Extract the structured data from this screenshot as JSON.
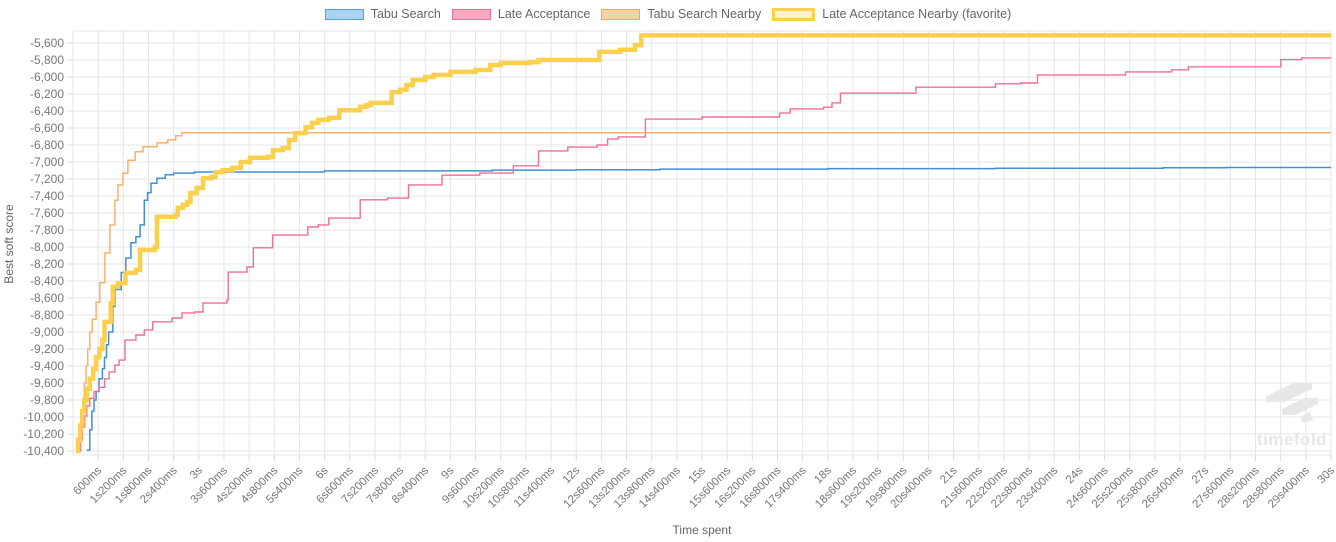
{
  "legend": {
    "items": [
      {
        "label": "Tabu Search",
        "fill": "#a9d3f2",
        "stroke": "#55a1dc",
        "line": "#4090d4",
        "line_width": 1.5
      },
      {
        "label": "Late Acceptance",
        "fill": "#f8a9bf",
        "stroke": "#ee7095",
        "line": "#ee7095",
        "line_width": 1.4
      },
      {
        "label": "Tabu Search Nearby",
        "fill": "#fbd3a2",
        "stroke": "#f7a557",
        "line": "#f9b169",
        "line_width": 1.5
      },
      {
        "label": "Late Acceptance Nearby (favorite)",
        "fill": "#fdf2cd",
        "stroke": "#fbd04f",
        "line": "#fbd04f",
        "line_width": 4.5
      }
    ]
  },
  "axes": {
    "y_title": "Best soft score",
    "x_title": "Time spent",
    "y_tick_labels": [
      "-5,600",
      "-5,800",
      "-6,000",
      "-6,200",
      "-6,400",
      "-6,600",
      "-6,800",
      "-7,000",
      "-7,200",
      "-7,400",
      "-7,600",
      "-7,800",
      "-8,000",
      "-8,200",
      "-8,400",
      "-8,600",
      "-8,800",
      "-9,000",
      "-9,200",
      "-9,400",
      "-9,600",
      "-9,800",
      "-10,000",
      "-10,200",
      "-10,400"
    ],
    "x_ticks": [
      [
        0.6,
        "600ms"
      ],
      [
        1.2,
        "1s200ms"
      ],
      [
        1.8,
        "1s800ms"
      ],
      [
        2.4,
        "2s400ms"
      ],
      [
        3,
        "3s"
      ],
      [
        3.6,
        "3s600ms"
      ],
      [
        4.2,
        "4s200ms"
      ],
      [
        4.8,
        "4s800ms"
      ],
      [
        5.4,
        "5s400ms"
      ],
      [
        6,
        "6s"
      ],
      [
        6.6,
        "6s600ms"
      ],
      [
        7.2,
        "7s200ms"
      ],
      [
        7.8,
        "7s800ms"
      ],
      [
        8.4,
        "8s400ms"
      ],
      [
        9,
        "9s"
      ],
      [
        9.6,
        "9s600ms"
      ],
      [
        10.2,
        "10s200ms"
      ],
      [
        10.8,
        "10s800ms"
      ],
      [
        11.4,
        "11s400ms"
      ],
      [
        12,
        "12s"
      ],
      [
        12.6,
        "12s600ms"
      ],
      [
        13.2,
        "13s200ms"
      ],
      [
        13.8,
        "13s800ms"
      ],
      [
        14.4,
        "14s400ms"
      ],
      [
        15,
        "15s"
      ],
      [
        15.6,
        "15s600ms"
      ],
      [
        16.2,
        "16s200ms"
      ],
      [
        16.8,
        "16s800ms"
      ],
      [
        17.4,
        "17s400ms"
      ],
      [
        18,
        "18s"
      ],
      [
        18.6,
        "18s600ms"
      ],
      [
        19.2,
        "19s200ms"
      ],
      [
        19.8,
        "19s800ms"
      ],
      [
        20.4,
        "20s400ms"
      ],
      [
        21,
        "21s"
      ],
      [
        21.6,
        "21s600ms"
      ],
      [
        22.2,
        "22s200ms"
      ],
      [
        22.8,
        "22s800ms"
      ],
      [
        23.4,
        "23s400ms"
      ],
      [
        24,
        "24s"
      ],
      [
        24.6,
        "24s600ms"
      ],
      [
        25.2,
        "25s200ms"
      ],
      [
        25.8,
        "25s800ms"
      ],
      [
        26.4,
        "26s400ms"
      ],
      [
        27,
        "27s"
      ],
      [
        27.6,
        "27s600ms"
      ],
      [
        28.2,
        "28s200ms"
      ],
      [
        28.8,
        "28s800ms"
      ],
      [
        29.4,
        "29s400ms"
      ],
      [
        30,
        "30s"
      ]
    ]
  },
  "chart_data": {
    "type": "line",
    "step": true,
    "title": "",
    "xlabel": "Time spent",
    "ylabel": "Best soft score",
    "x_unit": "seconds",
    "xlim": [
      0,
      30
    ],
    "ylim": [
      -10450,
      -5460
    ],
    "grid": true,
    "legend_position": "top",
    "series": [
      {
        "name": "Tabu Search",
        "points": [
          [
            0.33,
            -10390
          ],
          [
            0.4,
            -10150
          ],
          [
            0.45,
            -9930
          ],
          [
            0.5,
            -9800
          ],
          [
            0.55,
            -9700
          ],
          [
            0.62,
            -9550
          ],
          [
            0.7,
            -9430
          ],
          [
            0.75,
            -9300
          ],
          [
            0.8,
            -9150
          ],
          [
            0.85,
            -9000
          ],
          [
            0.95,
            -8700
          ],
          [
            1.0,
            -8500
          ],
          [
            1.15,
            -8300
          ],
          [
            1.26,
            -8130
          ],
          [
            1.38,
            -7950
          ],
          [
            1.5,
            -7880
          ],
          [
            1.6,
            -7740
          ],
          [
            1.7,
            -7450
          ],
          [
            1.78,
            -7360
          ],
          [
            1.86,
            -7250
          ],
          [
            2.0,
            -7190
          ],
          [
            2.2,
            -7150
          ],
          [
            2.4,
            -7130
          ],
          [
            2.9,
            -7118
          ],
          [
            6.0,
            -7105
          ],
          [
            10.0,
            -7095
          ],
          [
            12.0,
            -7090
          ],
          [
            14.0,
            -7083
          ],
          [
            18.0,
            -7078
          ],
          [
            22.0,
            -7073
          ],
          [
            26.0,
            -7068
          ],
          [
            27.5,
            -7065
          ],
          [
            30,
            -7065
          ]
        ]
      },
      {
        "name": "Late Acceptance",
        "points": [
          [
            0.14,
            -10400
          ],
          [
            0.18,
            -10270
          ],
          [
            0.22,
            -10120
          ],
          [
            0.28,
            -9990
          ],
          [
            0.33,
            -9870
          ],
          [
            0.4,
            -9780
          ],
          [
            0.5,
            -9700
          ],
          [
            0.62,
            -9650
          ],
          [
            0.75,
            -9550
          ],
          [
            0.86,
            -9470
          ],
          [
            1.0,
            -9390
          ],
          [
            1.1,
            -9330
          ],
          [
            1.24,
            -9095
          ],
          [
            1.5,
            -9035
          ],
          [
            1.7,
            -8975
          ],
          [
            1.9,
            -8880
          ],
          [
            2.36,
            -8835
          ],
          [
            2.6,
            -8775
          ],
          [
            2.9,
            -8765
          ],
          [
            3.1,
            -8660
          ],
          [
            3.67,
            -8625
          ],
          [
            3.7,
            -8295
          ],
          [
            4.15,
            -8235
          ],
          [
            4.3,
            -8010
          ],
          [
            4.76,
            -7860
          ],
          [
            5.6,
            -7765
          ],
          [
            5.85,
            -7740
          ],
          [
            6.1,
            -7660
          ],
          [
            6.85,
            -7445
          ],
          [
            7.5,
            -7425
          ],
          [
            8.0,
            -7270
          ],
          [
            8.8,
            -7155
          ],
          [
            9.7,
            -7130
          ],
          [
            10.5,
            -7045
          ],
          [
            11.1,
            -6870
          ],
          [
            11.8,
            -6825
          ],
          [
            12.5,
            -6800
          ],
          [
            12.75,
            -6730
          ],
          [
            13.0,
            -6705
          ],
          [
            13.65,
            -6495
          ],
          [
            15.0,
            -6470
          ],
          [
            16.85,
            -6425
          ],
          [
            17.1,
            -6375
          ],
          [
            17.9,
            -6355
          ],
          [
            18.1,
            -6305
          ],
          [
            18.3,
            -6190
          ],
          [
            20.1,
            -6120
          ],
          [
            22.0,
            -6080
          ],
          [
            22.6,
            -6070
          ],
          [
            23.0,
            -5975
          ],
          [
            25.1,
            -5940
          ],
          [
            26.2,
            -5915
          ],
          [
            26.6,
            -5880
          ],
          [
            28.8,
            -5795
          ],
          [
            29.3,
            -5775
          ],
          [
            30,
            -5775
          ]
        ]
      },
      {
        "name": "Tabu Search Nearby",
        "points": [
          [
            0.1,
            -10400
          ],
          [
            0.14,
            -10300
          ],
          [
            0.18,
            -10150
          ],
          [
            0.21,
            -10000
          ],
          [
            0.24,
            -9800
          ],
          [
            0.27,
            -9600
          ],
          [
            0.31,
            -9400
          ],
          [
            0.35,
            -9200
          ],
          [
            0.4,
            -9000
          ],
          [
            0.46,
            -8850
          ],
          [
            0.55,
            -8650
          ],
          [
            0.64,
            -8420
          ],
          [
            0.76,
            -8070
          ],
          [
            0.88,
            -7740
          ],
          [
            1.0,
            -7450
          ],
          [
            1.07,
            -7270
          ],
          [
            1.19,
            -7130
          ],
          [
            1.31,
            -6980
          ],
          [
            1.48,
            -6880
          ],
          [
            1.67,
            -6820
          ],
          [
            2.0,
            -6775
          ],
          [
            2.26,
            -6740
          ],
          [
            2.45,
            -6690
          ],
          [
            2.6,
            -6655
          ],
          [
            30,
            -6655
          ]
        ]
      },
      {
        "name": "Late Acceptance Nearby (favorite)",
        "points": [
          [
            0.07,
            -10400
          ],
          [
            0.12,
            -10270
          ],
          [
            0.17,
            -10100
          ],
          [
            0.22,
            -9930
          ],
          [
            0.27,
            -9800
          ],
          [
            0.33,
            -9670
          ],
          [
            0.4,
            -9550
          ],
          [
            0.48,
            -9435
          ],
          [
            0.55,
            -9295
          ],
          [
            0.63,
            -9200
          ],
          [
            0.7,
            -9095
          ],
          [
            0.75,
            -8880
          ],
          [
            0.9,
            -8660
          ],
          [
            0.95,
            -8470
          ],
          [
            1.07,
            -8425
          ],
          [
            1.25,
            -8305
          ],
          [
            1.5,
            -8270
          ],
          [
            1.6,
            -8035
          ],
          [
            1.95,
            -8000
          ],
          [
            2.0,
            -7645
          ],
          [
            2.45,
            -7620
          ],
          [
            2.5,
            -7540
          ],
          [
            2.62,
            -7505
          ],
          [
            2.72,
            -7470
          ],
          [
            2.8,
            -7365
          ],
          [
            2.95,
            -7305
          ],
          [
            3.1,
            -7190
          ],
          [
            3.3,
            -7175
          ],
          [
            3.4,
            -7120
          ],
          [
            3.57,
            -7095
          ],
          [
            3.8,
            -7070
          ],
          [
            4.0,
            -7000
          ],
          [
            4.22,
            -6950
          ],
          [
            4.65,
            -6940
          ],
          [
            4.77,
            -6860
          ],
          [
            5.0,
            -6835
          ],
          [
            5.15,
            -6740
          ],
          [
            5.3,
            -6660
          ],
          [
            5.55,
            -6590
          ],
          [
            5.7,
            -6540
          ],
          [
            5.85,
            -6505
          ],
          [
            6.1,
            -6480
          ],
          [
            6.35,
            -6390
          ],
          [
            6.85,
            -6350
          ],
          [
            7.0,
            -6330
          ],
          [
            7.1,
            -6305
          ],
          [
            7.6,
            -6180
          ],
          [
            7.8,
            -6150
          ],
          [
            7.95,
            -6095
          ],
          [
            8.1,
            -6035
          ],
          [
            8.4,
            -6000
          ],
          [
            8.6,
            -5975
          ],
          [
            9.0,
            -5940
          ],
          [
            9.6,
            -5918
          ],
          [
            9.95,
            -5860
          ],
          [
            10.2,
            -5835
          ],
          [
            10.9,
            -5825
          ],
          [
            11.1,
            -5800
          ],
          [
            12.55,
            -5705
          ],
          [
            13.05,
            -5680
          ],
          [
            13.4,
            -5625
          ],
          [
            13.55,
            -5510
          ],
          [
            30,
            -5510
          ]
        ]
      }
    ]
  },
  "watermark": {
    "text": "timefold"
  },
  "colors": {
    "grid": "#e6e6e6",
    "tick_text": "#777777",
    "axis_title": "#666666",
    "background": "#ffffff",
    "watermark": "#e7e7e7"
  }
}
